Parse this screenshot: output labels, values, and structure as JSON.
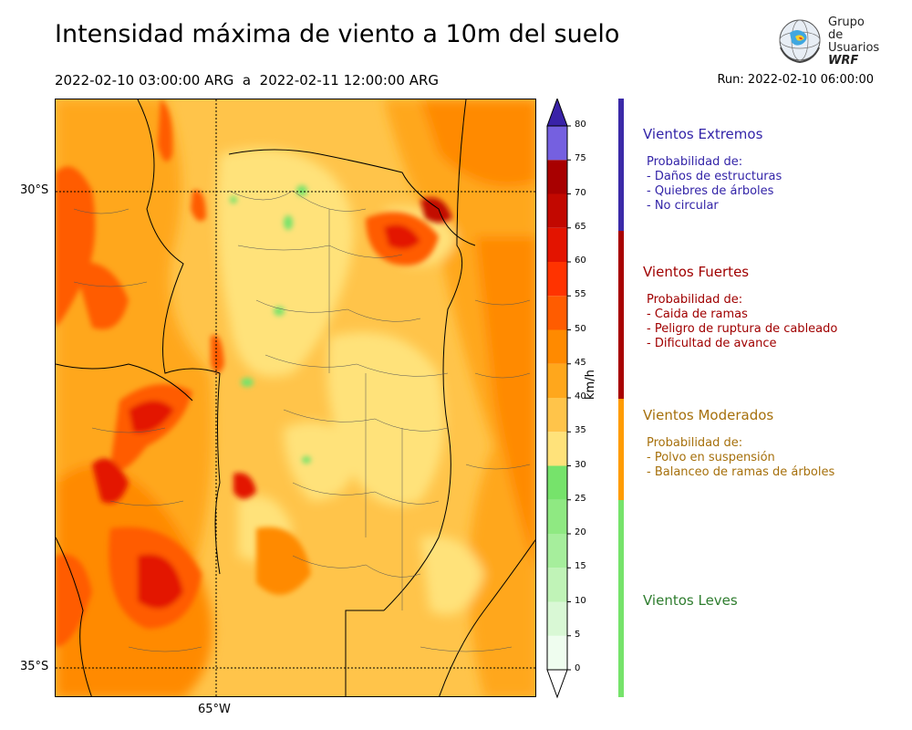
{
  "header": {
    "title": "Intensidad máxima de viento a 10m del suelo",
    "period": "2022-02-10 03:00:00 ARG  a  2022-02-11 12:00:00 ARG",
    "run": "Run: 2022-02-10 06:00:00"
  },
  "logo": {
    "line1": "Grupo de",
    "line2": "Usuarios",
    "line3": "WRF"
  },
  "map": {
    "lat_labels": [
      "30°S",
      "35°S"
    ],
    "lon_labels": [
      "65°W"
    ]
  },
  "colorbar": {
    "unit": "km/h",
    "ticks": [
      "0",
      "5",
      "10",
      "15",
      "20",
      "25",
      "30",
      "35",
      "40",
      "45",
      "50",
      "55",
      "60",
      "65",
      "70",
      "75",
      "80"
    ],
    "colors": [
      "#effdef",
      "#d9f8d5",
      "#c0f3b7",
      "#a6ee9c",
      "#8fe982",
      "#76e36b",
      "#ffe27a",
      "#ffc44a",
      "#ffa71c",
      "#ff8a00",
      "#ff5c00",
      "#ff3300",
      "#e31400",
      "#c20800",
      "#a80000",
      "#7560e0",
      "#5748cc",
      "#4232b8",
      "#3922a8"
    ]
  },
  "categories": [
    {
      "title": "Vientos Extremos",
      "color": "#3324a8",
      "lines": [
        "Probabilidad de:",
        "- Daños de estructuras",
        "- Quiebres de árboles",
        "- No circular"
      ]
    },
    {
      "title": "Vientos Fuertes",
      "color": "#a00000",
      "lines": [
        "Probabilidad de:",
        "- Caida de ramas",
        "- Peligro de ruptura de cableado",
        "- Dificultad de avance"
      ]
    },
    {
      "title": "Vientos Moderados",
      "color": "#a6700c",
      "lines": [
        "Probabilidad de:",
        "- Polvo en suspensión",
        "- Balanceo de ramas de árboles"
      ]
    },
    {
      "title": "Vientos Leves",
      "color": "#2f7d2f",
      "lines": []
    }
  ]
}
